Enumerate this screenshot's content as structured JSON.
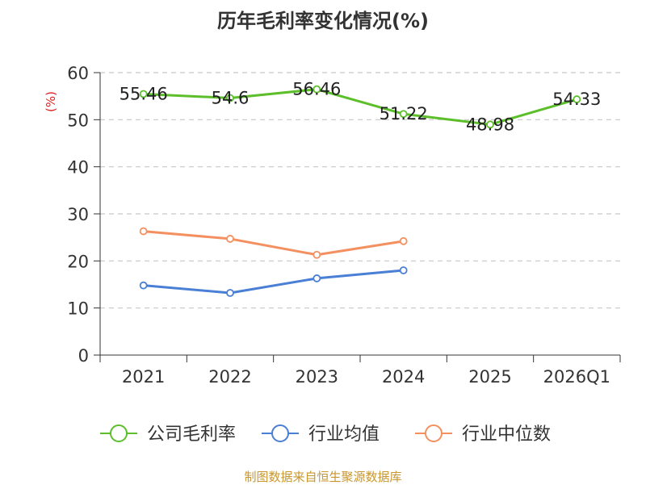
{
  "title": "历年毛利率变化情况(%)",
  "source": "制图数据来自恒生聚源数据库",
  "chart_data": {
    "type": "line",
    "title": "历年毛利率变化情况(%)",
    "ylabel": "(%)",
    "xlabel": "",
    "ylim": [
      0,
      60
    ],
    "yticks": [
      0,
      10,
      20,
      30,
      40,
      50,
      60
    ],
    "grid": true,
    "legend_position": "bottom",
    "categories": [
      "2021",
      "2022",
      "2023",
      "2024",
      "2025",
      "2026Q1"
    ],
    "series": [
      {
        "name": "公司毛利率",
        "color": "#5cbf2a",
        "values": [
          55.46,
          54.6,
          56.46,
          51.22,
          48.98,
          54.33
        ],
        "labels": [
          "55.46",
          "54.6",
          "56.46",
          "51.22",
          "48.98",
          "54.33"
        ]
      },
      {
        "name": "行业均值",
        "color": "#4a7fd6",
        "values": [
          14.8,
          13.2,
          16.3,
          18.0,
          null,
          null
        ]
      },
      {
        "name": "行业中位数",
        "color": "#f49060",
        "values": [
          26.3,
          24.7,
          21.3,
          24.2,
          null,
          null
        ]
      }
    ]
  }
}
